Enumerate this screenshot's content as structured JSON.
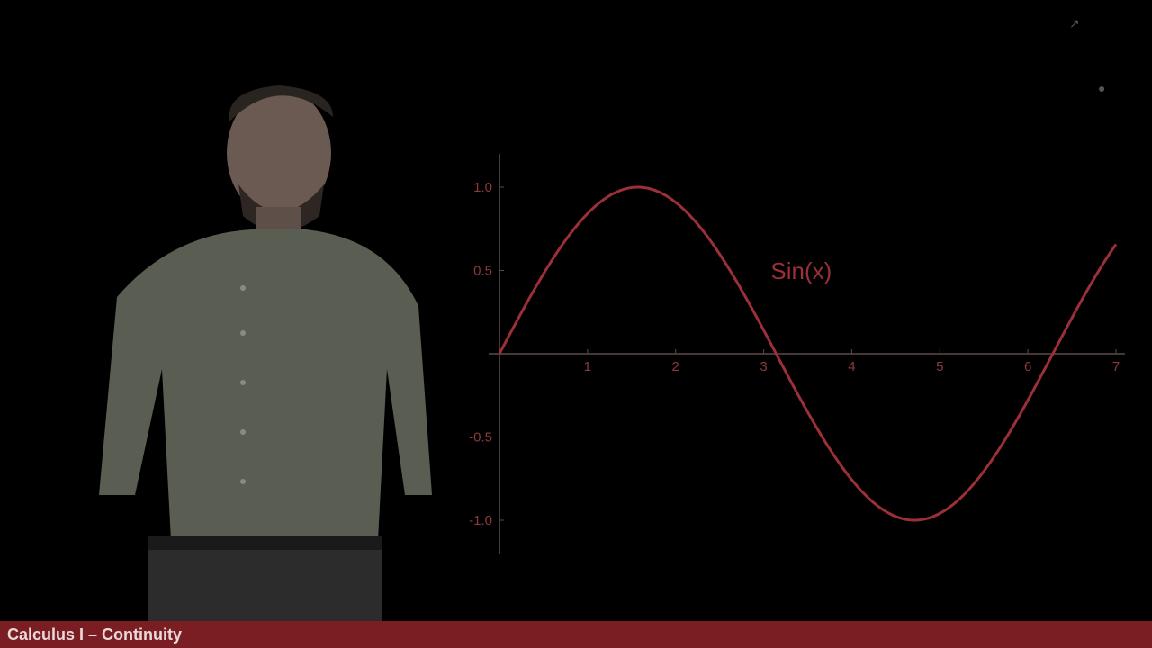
{
  "lower_third": {
    "text": "Calculus I – Continuity"
  },
  "curve_color": "#9c2f38",
  "axis_color": "#5a4a4a",
  "chart_data": {
    "type": "line",
    "title": "",
    "xlabel": "",
    "ylabel": "",
    "curve_label": "Sin(x)",
    "function": "sin",
    "xlim": [
      0,
      7
    ],
    "ylim": [
      -1.2,
      1.2
    ],
    "x_ticks": [
      "1",
      "2",
      "3",
      "4",
      "5",
      "6",
      "7"
    ],
    "y_ticks": [
      "1.0",
      "0.5",
      "-0.5",
      "-1.0"
    ],
    "series": [
      {
        "name": "Sin(x)",
        "x": [
          0,
          0.5,
          1,
          1.5708,
          2,
          2.5,
          3,
          3.1416,
          3.5,
          4,
          4.5,
          4.7124,
          5,
          5.5,
          6,
          6.2832,
          7
        ],
        "y": [
          0,
          0.479,
          0.841,
          1.0,
          0.909,
          0.598,
          0.141,
          0.0,
          -0.351,
          -0.757,
          -0.977,
          -1.0,
          -0.959,
          -0.706,
          -0.279,
          0.0,
          0.657
        ]
      }
    ]
  }
}
